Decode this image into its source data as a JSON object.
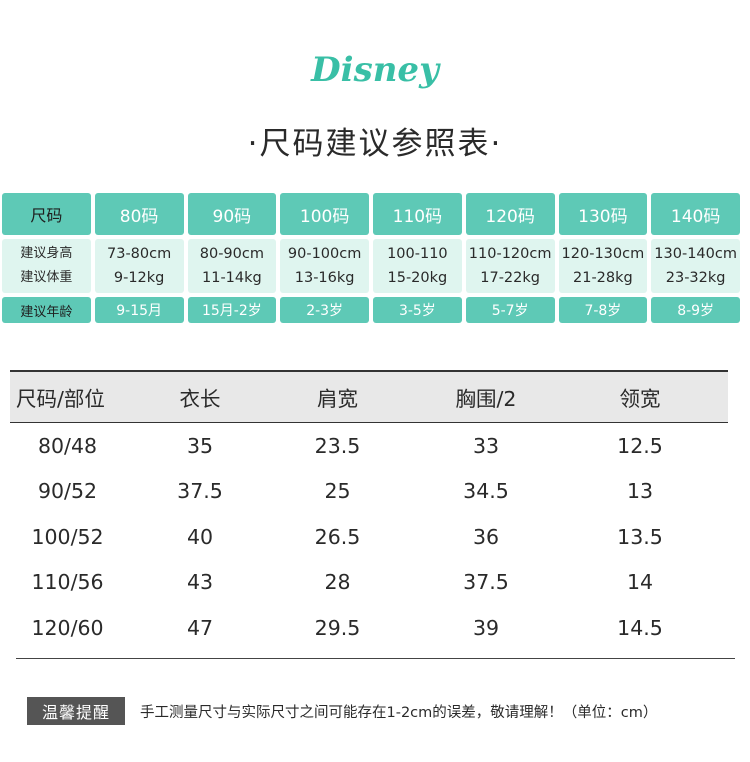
{
  "brand": {
    "logo_text": "Disney",
    "accent_color": "#39bfa6"
  },
  "title": "·尺码建议参照表·",
  "size_guide": {
    "header_label": "尺码",
    "sizes": [
      "80码",
      "90码",
      "100码",
      "110码",
      "120码",
      "130码",
      "140码"
    ],
    "height_label": "建议身高",
    "weight_label": "建议体重",
    "age_label": "建议年龄",
    "heights": [
      "73-80cm",
      "80-90cm",
      "90-100cm",
      "100-110",
      "110-120cm",
      "120-130cm",
      "130-140cm"
    ],
    "weights": [
      "9-12kg",
      "11-14kg",
      "13-16kg",
      "15-20kg",
      "17-22kg",
      "21-28kg",
      "23-32kg"
    ],
    "ages": [
      "9-15月",
      "15月-2岁",
      "2-3岁",
      "3-5岁",
      "5-7岁",
      "7-8岁",
      "8-9岁"
    ]
  },
  "measurements": {
    "headers": [
      "尺码/部位",
      "衣长",
      "肩宽",
      "胸围/2",
      "领宽"
    ],
    "rows": [
      [
        "80/48",
        "35",
        "23.5",
        "33",
        "12.5"
      ],
      [
        "90/52",
        "37.5",
        "25",
        "34.5",
        "13"
      ],
      [
        "100/52",
        "40",
        "26.5",
        "36",
        "13.5"
      ],
      [
        "110/56",
        "43",
        "28",
        "37.5",
        "14"
      ],
      [
        "120/60",
        "47",
        "29.5",
        "39",
        "14.5"
      ]
    ]
  },
  "note": {
    "badge": "温馨提醒",
    "text": "手工测量尺寸与实际尺寸之间可能存在1-2cm的误差，敬请理解！（单位：cm）"
  }
}
